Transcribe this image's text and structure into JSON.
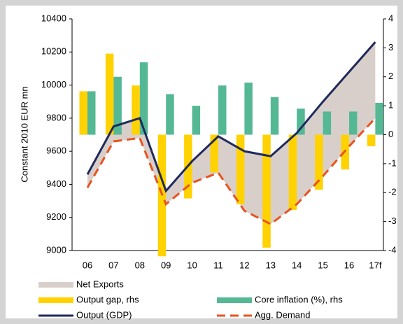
{
  "chart_data": {
    "type": "combo",
    "y_label": "Constant 2010 EUR mn",
    "categories": [
      "06",
      "07",
      "08",
      "09",
      "10",
      "11",
      "12",
      "13",
      "14",
      "15",
      "16",
      "17f"
    ],
    "ylim": [
      9000,
      10400
    ],
    "yticks": [
      9000,
      9200,
      9400,
      9600,
      9800,
      10000,
      10200,
      10400
    ],
    "y2lim": [
      -4,
      4
    ],
    "y2ticks": [
      -4,
      -3,
      -2,
      -1,
      0,
      1,
      2,
      3,
      4
    ],
    "series": [
      {
        "name": "Net Exports",
        "type": "area",
        "color": "#d9cfca",
        "values": [
          80,
          90,
          120,
          80,
          130,
          220,
          360,
          410,
          430,
          450,
          450,
          460
        ]
      },
      {
        "name": "Output gap, rhs",
        "type": "bar",
        "axis": "y2",
        "color": "#ffd200",
        "values": [
          1.5,
          2.8,
          1.7,
          -4.2,
          -2.2,
          -1.3,
          -2.4,
          -3.9,
          -2.6,
          -1.9,
          -1.2,
          -0.4
        ]
      },
      {
        "name": "Core inflation (%), rhs",
        "type": "bar",
        "axis": "y2",
        "color": "#55b895",
        "values": [
          1.5,
          2.0,
          2.5,
          1.4,
          1.0,
          1.7,
          1.8,
          1.3,
          0.9,
          0.8,
          0.8,
          1.1
        ]
      },
      {
        "name": "Output (GDP)",
        "type": "line",
        "color": "#1f2a5c",
        "values": [
          9460,
          9750,
          9800,
          9360,
          9540,
          9690,
          9600,
          9570,
          9710,
          9900,
          10080,
          10260
        ]
      },
      {
        "name": "Agg. Demand",
        "type": "line",
        "dash": true,
        "color": "#e8531f",
        "values": [
          9380,
          9660,
          9680,
          9280,
          9410,
          9470,
          9240,
          9160,
          9280,
          9450,
          9630,
          9800
        ]
      }
    ]
  }
}
